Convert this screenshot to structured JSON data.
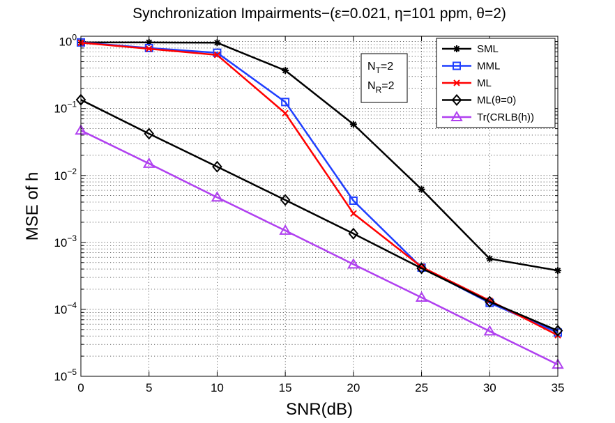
{
  "chart_data": {
    "type": "line",
    "title": "Synchronization Impairments−(ε=0.021, η=101 ppm, θ=2)",
    "xlabel": "SNR(dB)",
    "ylabel": "MSE of h",
    "yscale": "log",
    "xlim": [
      0,
      35
    ],
    "ylim": [
      1e-05,
      1.2
    ],
    "grid": true,
    "legend_position": "top-right",
    "x": [
      0,
      5,
      10,
      15,
      20,
      25,
      30,
      35
    ],
    "x_tick_labels": [
      "0",
      "5",
      "10",
      "15",
      "20",
      "25",
      "30",
      "35"
    ],
    "y_ticks": [
      {
        "value": 1,
        "exp": "0"
      },
      {
        "value": 0.1,
        "exp": "−1"
      },
      {
        "value": 0.01,
        "exp": "−2"
      },
      {
        "value": 0.001,
        "exp": "−3"
      },
      {
        "value": 0.0001,
        "exp": "−4"
      },
      {
        "value": 1e-05,
        "exp": "−5"
      }
    ],
    "y_tick_base": "10",
    "series": [
      {
        "name": "SML",
        "color": "#000000",
        "marker": "star",
        "values": [
          0.97,
          0.97,
          0.96,
          0.37,
          0.058,
          0.0062,
          0.00057,
          0.00038
        ]
      },
      {
        "name": "MML",
        "color": "#1f3fff",
        "marker": "square",
        "values": [
          0.97,
          0.8,
          0.68,
          0.125,
          0.0042,
          0.00042,
          0.000125,
          4.5e-05
        ]
      },
      {
        "name": "ML",
        "color": "#ff0000",
        "marker": "x",
        "values": [
          0.96,
          0.78,
          0.63,
          0.085,
          0.0027,
          0.00043,
          0.000135,
          4.1e-05
        ]
      },
      {
        "name": "ML(θ=0)",
        "color": "#000000",
        "marker": "diamond",
        "values": [
          0.135,
          0.042,
          0.0135,
          0.0043,
          0.00135,
          0.00041,
          0.00013,
          4.8e-05
        ]
      },
      {
        "name": "Tr(CRLB(h))",
        "color": "#b040f0",
        "marker": "triangle",
        "values": [
          0.047,
          0.015,
          0.0047,
          0.0015,
          0.00047,
          0.00015,
          4.7e-05,
          1.5e-05
        ]
      }
    ],
    "annotation": {
      "line1_base": "N",
      "line1_sub": "T",
      "line1_value": "=2",
      "line2_base": "N",
      "line2_sub": "R",
      "line2_value": "=2"
    }
  }
}
